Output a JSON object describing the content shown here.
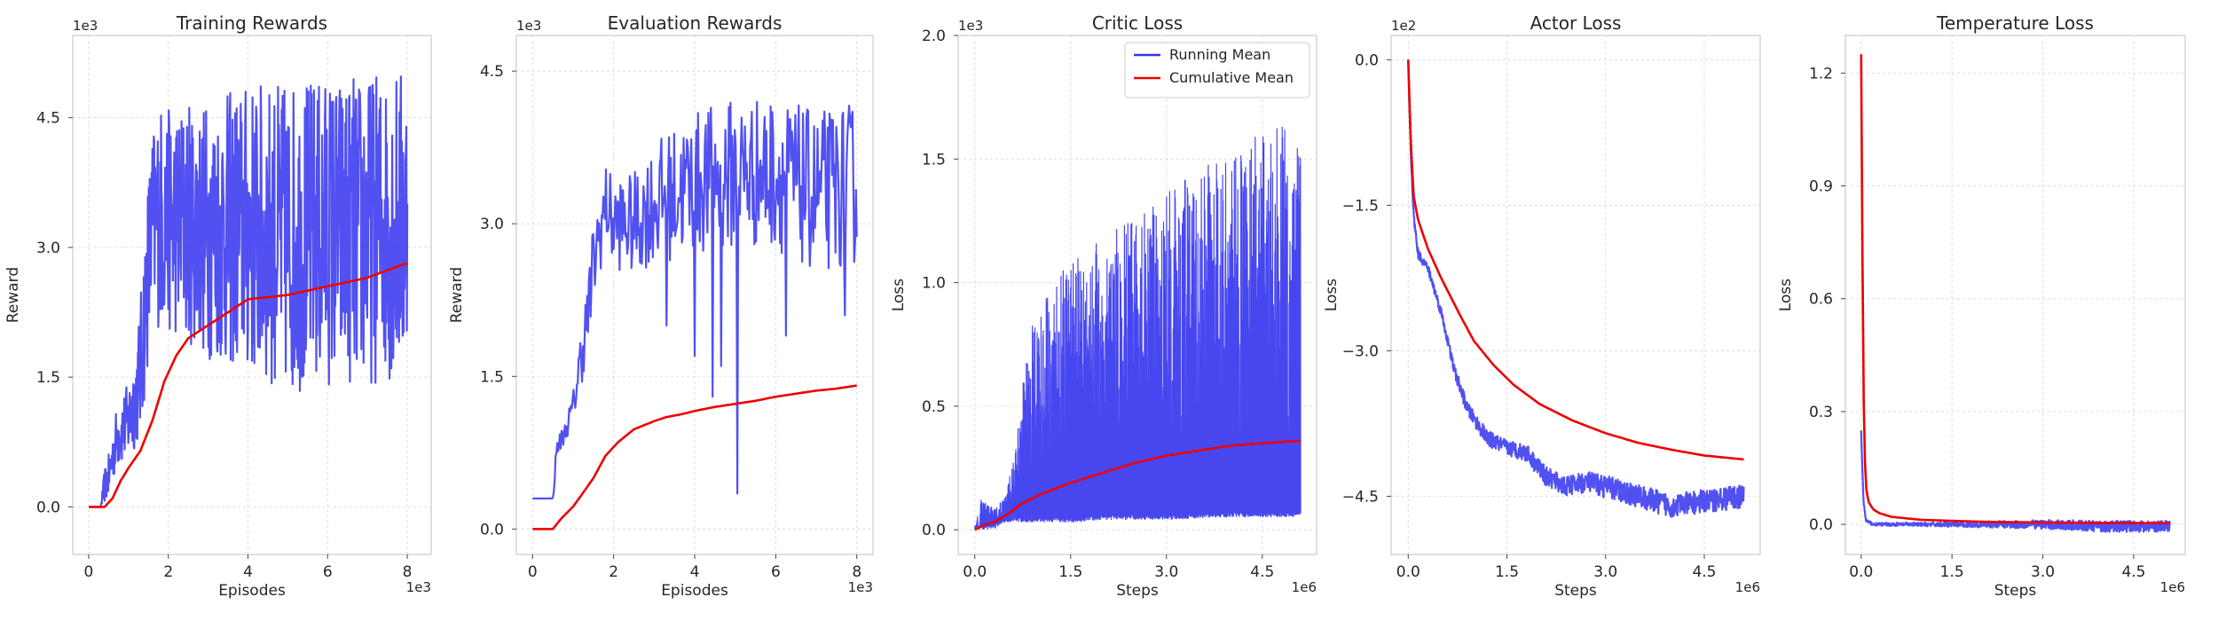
{
  "colors": {
    "running": "#3333ee",
    "cumulative": "#ee0000"
  },
  "chart_data": [
    {
      "type": "line",
      "title": "Training Rewards",
      "xlabel": "Episodes",
      "ylabel": "Reward",
      "xlim": [
        -0.4,
        8.6
      ],
      "ylim": [
        -0.55,
        5.45
      ],
      "xticks": [
        0,
        2,
        4,
        6,
        8
      ],
      "xtick_labels": [
        "0",
        "2",
        "4",
        "6",
        "8"
      ],
      "yticks": [
        0,
        1.5,
        3.0,
        4.5
      ],
      "ytick_labels": [
        "0.0",
        "1.5",
        "3.0",
        "4.5"
      ],
      "x_offset": "1e3",
      "y_offset": "1e3",
      "grid": true,
      "series": [
        {
          "key": "running",
          "kind": "noisy",
          "x": [
            0,
            0.3,
            0.4,
            0.5,
            0.7,
            1.0,
            1.2,
            1.3,
            1.4,
            1.5,
            1.6,
            1.8,
            2.0,
            2.5,
            3.0,
            4.0,
            5.0,
            6.0,
            7.0,
            8.0
          ],
          "mean": [
            0,
            0,
            0.25,
            0.35,
            0.8,
            1.0,
            1.3,
            1.6,
            2.2,
            2.8,
            3.2,
            3.4,
            3.3,
            3.3,
            3.2,
            3.2,
            3.1,
            3.2,
            3.2,
            3.3
          ],
          "amp": [
            0,
            0,
            0.2,
            0.25,
            0.35,
            0.45,
            0.6,
            0.8,
            1.0,
            1.1,
            1.2,
            1.3,
            1.3,
            1.4,
            1.5,
            1.7,
            1.8,
            1.8,
            1.8,
            1.8
          ],
          "lo": 0,
          "hi": 5.25,
          "n": 700
        },
        {
          "key": "cumulative",
          "kind": "smooth",
          "x": [
            0,
            0.4,
            0.6,
            0.8,
            1.0,
            1.3,
            1.6,
            1.9,
            2.2,
            2.5,
            3.0,
            3.5,
            4.0,
            5.0,
            6.0,
            7.0,
            8.0
          ],
          "y": [
            0,
            0,
            0.1,
            0.3,
            0.45,
            0.65,
            1.0,
            1.45,
            1.75,
            1.95,
            2.1,
            2.25,
            2.4,
            2.45,
            2.55,
            2.65,
            2.82
          ]
        }
      ]
    },
    {
      "type": "line",
      "title": "Evaluation Rewards",
      "xlabel": "Episodes",
      "ylabel": "Reward",
      "xlim": [
        -0.4,
        8.4
      ],
      "ylim": [
        -0.25,
        4.85
      ],
      "xticks": [
        0,
        2,
        4,
        6,
        8
      ],
      "xtick_labels": [
        "0",
        "2",
        "4",
        "6",
        "8"
      ],
      "yticks": [
        0,
        1.5,
        3.0,
        4.5
      ],
      "ytick_labels": [
        "0.0",
        "1.5",
        "3.0",
        "4.5"
      ],
      "x_offset": "1e3",
      "y_offset": "1e3",
      "grid": true,
      "series": [
        {
          "key": "running",
          "kind": "noisy",
          "x": [
            0,
            0.4,
            0.5,
            0.6,
            0.8,
            1.0,
            1.2,
            1.4,
            1.5,
            1.8,
            2.0,
            2.5,
            3.0,
            4.0,
            5.0,
            6.0,
            7.0,
            8.0
          ],
          "mean": [
            0,
            0,
            0.3,
            0.8,
            0.95,
            1.2,
            1.7,
            2.2,
            2.6,
            3.2,
            3.0,
            3.0,
            3.2,
            3.4,
            3.5,
            3.5,
            3.3,
            3.4
          ],
          "amp": [
            0,
            0,
            0.05,
            0.1,
            0.1,
            0.15,
            0.3,
            0.4,
            0.45,
            0.4,
            0.45,
            0.5,
            0.6,
            0.7,
            0.75,
            0.75,
            0.8,
            0.8
          ],
          "lo": 0.3,
          "hi": 4.7,
          "n": 380,
          "dips": [
            [
              3.3,
              2.0
            ],
            [
              4.0,
              1.7
            ],
            [
              4.45,
              1.3
            ],
            [
              4.65,
              1.6
            ],
            [
              5.05,
              0.35
            ],
            [
              6.25,
              1.9
            ],
            [
              7.7,
              2.1
            ]
          ]
        },
        {
          "key": "cumulative",
          "kind": "smooth",
          "x": [
            0,
            0.5,
            0.7,
            1.0,
            1.2,
            1.5,
            1.8,
            2.1,
            2.5,
            3.0,
            3.3,
            3.7,
            4.0,
            4.5,
            5.0,
            5.5,
            6.0,
            6.5,
            7.0,
            7.5,
            8.0
          ],
          "y": [
            0,
            0,
            0.1,
            0.22,
            0.33,
            0.5,
            0.72,
            0.85,
            0.98,
            1.06,
            1.1,
            1.13,
            1.16,
            1.2,
            1.23,
            1.26,
            1.3,
            1.33,
            1.36,
            1.38,
            1.41
          ]
        }
      ]
    },
    {
      "type": "line",
      "title": "Critic Loss",
      "xlabel": "Steps",
      "ylabel": "Loss",
      "xlim": [
        -0.26,
        5.35
      ],
      "ylim": [
        -0.1,
        2.0
      ],
      "xticks": [
        0,
        1.5,
        3.0,
        4.5
      ],
      "xtick_labels": [
        "0.0",
        "1.5",
        "3.0",
        "4.5"
      ],
      "yticks": [
        0,
        0.5,
        1.0,
        1.5,
        2.0
      ],
      "ytick_labels": [
        "0.0",
        "0.5",
        "1.0",
        "1.5",
        "2.0"
      ],
      "x_offset": "1e6",
      "y_offset": "1e3",
      "grid": true,
      "legend": {
        "position": "upper right",
        "entries": [
          "Running Mean",
          "Cumulative Mean"
        ]
      },
      "series": [
        {
          "key": "running",
          "kind": "band",
          "x": [
            0,
            0.1,
            0.3,
            0.5,
            0.7,
            0.9,
            1.2,
            1.6,
            2.0,
            3.0,
            4.0,
            5.1
          ],
          "mean": [
            0,
            0.1,
            0.07,
            0.12,
            0.4,
            0.7,
            0.8,
            0.9,
            0.95,
            1.1,
            1.25,
            1.35
          ],
          "lo": [
            0,
            0,
            0,
            0.03,
            0.03,
            0.03,
            0.03,
            0.03,
            0.04,
            0.04,
            0.05,
            0.05
          ],
          "n": 1500
        },
        {
          "key": "cumulative",
          "kind": "smooth",
          "x": [
            0,
            0.15,
            0.3,
            0.5,
            0.7,
            1.0,
            1.5,
            2.0,
            2.5,
            3.0,
            3.5,
            4.0,
            4.5,
            5.1
          ],
          "y": [
            0,
            0.02,
            0.03,
            0.06,
            0.1,
            0.14,
            0.19,
            0.23,
            0.27,
            0.3,
            0.32,
            0.34,
            0.35,
            0.36
          ]
        }
      ]
    },
    {
      "type": "line",
      "title": "Actor Loss",
      "xlabel": "Steps",
      "ylabel": "Loss",
      "xlim": [
        -0.26,
        5.35
      ],
      "ylim": [
        -5.1,
        0.25
      ],
      "xticks": [
        0,
        1.5,
        3.0,
        4.5
      ],
      "xtick_labels": [
        "0.0",
        "1.5",
        "3.0",
        "4.5"
      ],
      "yticks": [
        0,
        -1.5,
        -3.0,
        -4.5
      ],
      "ytick_labels": [
        "0.0",
        "−1.5",
        "−3.0",
        "−4.5"
      ],
      "x_offset": "1e6",
      "y_offset": "1e2",
      "grid": true,
      "series": [
        {
          "key": "running",
          "kind": "noisy",
          "x": [
            0,
            0.03,
            0.08,
            0.15,
            0.3,
            0.5,
            0.7,
            0.9,
            1.2,
            1.5,
            1.8,
            2.1,
            2.4,
            2.7,
            3.0,
            3.5,
            4.0,
            4.5,
            5.1
          ],
          "mean": [
            0,
            -0.8,
            -1.6,
            -2.0,
            -2.15,
            -2.6,
            -3.2,
            -3.6,
            -3.9,
            -4.0,
            -4.05,
            -4.3,
            -4.4,
            -4.35,
            -4.4,
            -4.5,
            -4.6,
            -4.55,
            -4.5
          ],
          "amp": [
            0,
            0.03,
            0.05,
            0.05,
            0.05,
            0.05,
            0.06,
            0.07,
            0.08,
            0.08,
            0.09,
            0.1,
            0.1,
            0.11,
            0.12,
            0.12,
            0.12,
            0.12,
            0.12
          ],
          "lo": -5.0,
          "hi": 0,
          "n": 900
        },
        {
          "key": "cumulative",
          "kind": "smooth",
          "x": [
            0,
            0.03,
            0.08,
            0.15,
            0.3,
            0.5,
            0.8,
            1.0,
            1.3,
            1.6,
            2.0,
            2.5,
            3.0,
            3.5,
            4.0,
            4.5,
            5.1
          ],
          "y": [
            0,
            -0.7,
            -1.4,
            -1.65,
            -1.95,
            -2.25,
            -2.65,
            -2.9,
            -3.15,
            -3.35,
            -3.55,
            -3.72,
            -3.85,
            -3.95,
            -4.02,
            -4.08,
            -4.12
          ]
        }
      ]
    },
    {
      "type": "line",
      "title": "Temperature Loss",
      "xlabel": "Steps",
      "ylabel": "Loss",
      "xlim": [
        -0.26,
        5.35
      ],
      "ylim": [
        -0.08,
        1.3
      ],
      "xticks": [
        0,
        1.5,
        3.0,
        4.5
      ],
      "xtick_labels": [
        "0.0",
        "1.5",
        "3.0",
        "4.5"
      ],
      "yticks": [
        0,
        0.3,
        0.6,
        0.9,
        1.2
      ],
      "ytick_labels": [
        "0.0",
        "0.3",
        "0.6",
        "0.9",
        "1.2"
      ],
      "x_offset": "1e6",
      "y_offset": "",
      "grid": true,
      "series": [
        {
          "key": "running",
          "kind": "noisy",
          "x": [
            0,
            0.02,
            0.04,
            0.08,
            0.2,
            1.0,
            2.0,
            3.0,
            4.0,
            5.1
          ],
          "mean": [
            0.25,
            0.15,
            0.06,
            0.01,
            0,
            0,
            0,
            0,
            -0.005,
            -0.005
          ],
          "amp": [
            0,
            0,
            0.005,
            0.005,
            0.004,
            0.005,
            0.008,
            0.012,
            0.015,
            0.015
          ],
          "lo": -0.04,
          "hi": 0.3,
          "n": 900
        },
        {
          "key": "cumulative",
          "kind": "smooth",
          "x": [
            0,
            0.015,
            0.03,
            0.05,
            0.08,
            0.12,
            0.2,
            0.3,
            0.5,
            1.0,
            2.0,
            3.0,
            4.0,
            5.1
          ],
          "y": [
            1.25,
            0.9,
            0.5,
            0.22,
            0.1,
            0.06,
            0.04,
            0.03,
            0.02,
            0.012,
            0.007,
            0.005,
            0.004,
            0.003
          ]
        }
      ]
    }
  ]
}
